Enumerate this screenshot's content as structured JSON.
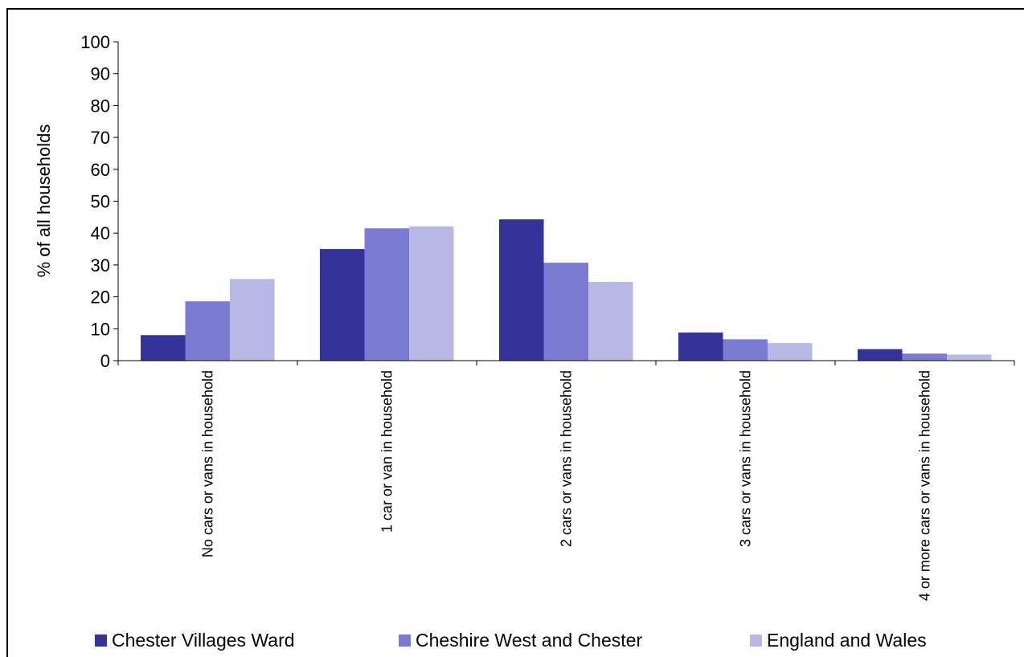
{
  "chart_data": {
    "type": "bar",
    "title": "",
    "xlabel": "",
    "ylabel": "% of all households",
    "ylim": [
      0,
      100
    ],
    "yticks": [
      0,
      10,
      20,
      30,
      40,
      50,
      60,
      70,
      80,
      90,
      100
    ],
    "categories": [
      "No cars or vans in household",
      "1 car or van in household",
      "2 cars or vans in household",
      "3 cars or vans in household",
      "4 or more cars or vans in household"
    ],
    "series": [
      {
        "name": "Chester Villages Ward",
        "color": "#333399",
        "values": [
          8.0,
          35.0,
          44.3,
          8.8,
          3.6
        ]
      },
      {
        "name": "Cheshire West and Chester",
        "color": "#7b7bd3",
        "values": [
          18.6,
          41.5,
          30.7,
          6.7,
          2.2
        ]
      },
      {
        "name": "England and Wales",
        "color": "#b8b8e6",
        "values": [
          25.6,
          42.1,
          24.7,
          5.5,
          1.9
        ]
      }
    ],
    "grid": false,
    "legend_position": "bottom"
  }
}
